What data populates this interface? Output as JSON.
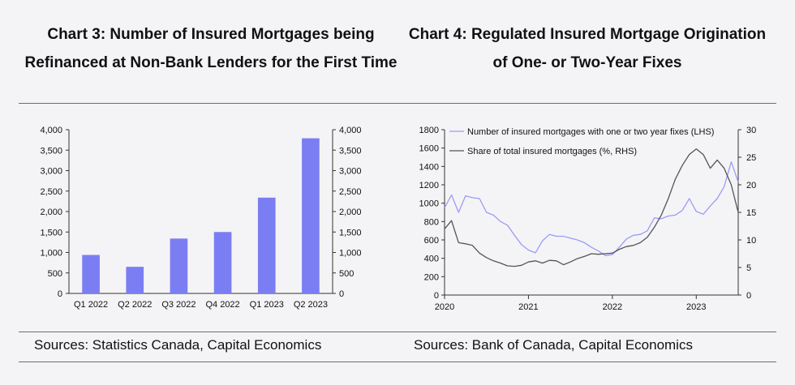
{
  "chart3": {
    "title": "Chart 3: Number of Insured Mortgages being Refinanced at Non-Bank Lenders for the First Time",
    "source": "Sources: Statistics Canada, Capital Economics"
  },
  "chart4": {
    "title": "Chart 4: Regulated Insured Mortgage Origination of One- or Two-Year Fixes",
    "source": "Sources: Bank of Canada, Capital Economics"
  },
  "colors": {
    "bar": "#7b7ef2",
    "line_count": "#9a9cf7",
    "line_share": "#555555",
    "axis": "#333333"
  },
  "chart_data": [
    {
      "type": "bar",
      "title": "Chart 3: Number of Insured Mortgages being Refinanced at Non-Bank Lenders for the First Time",
      "categories": [
        "Q1 2022",
        "Q2 2022",
        "Q3 2022",
        "Q4 2022",
        "Q1 2023",
        "Q2 2023"
      ],
      "values": [
        940,
        650,
        1340,
        1500,
        2340,
        3790
      ],
      "ylim": [
        0,
        4000
      ],
      "yticks": [
        "0",
        "500",
        "1,000",
        "1,500",
        "2,000",
        "2,500",
        "3,000",
        "3,500",
        "4,000"
      ],
      "y2ticks": [
        "0",
        "500",
        "1,000",
        "1,500",
        "2,000",
        "2,500",
        "3,000",
        "3,500",
        "4,000"
      ],
      "grid": false,
      "legend": "none"
    },
    {
      "type": "line",
      "title": "Chart 4: Regulated Insured Mortgage Origination of One- or Two-Year Fixes",
      "xlim": [
        2020.0,
        2023.5
      ],
      "xticks": [
        "2020",
        "2021",
        "2022",
        "2023"
      ],
      "ylim": [
        0,
        1800
      ],
      "yticks": [
        "0",
        "200",
        "400",
        "600",
        "800",
        "1000",
        "1200",
        "1400",
        "1600",
        "1800"
      ],
      "y2lim": [
        0,
        30
      ],
      "y2ticks": [
        "0",
        "5",
        "10",
        "15",
        "20",
        "25",
        "30"
      ],
      "legend": "top-left",
      "grid": false,
      "series": [
        {
          "name": "Number of insured mortgages with one or two year fixes (LHS)",
          "axis": "left",
          "x": [
            2020.0,
            2020.083,
            2020.167,
            2020.25,
            2020.333,
            2020.417,
            2020.5,
            2020.583,
            2020.667,
            2020.75,
            2020.833,
            2020.917,
            2021.0,
            2021.083,
            2021.167,
            2021.25,
            2021.333,
            2021.417,
            2021.5,
            2021.583,
            2021.667,
            2021.75,
            2021.833,
            2021.917,
            2022.0,
            2022.083,
            2022.167,
            2022.25,
            2022.333,
            2022.417,
            2022.5,
            2022.583,
            2022.667,
            2022.75,
            2022.833,
            2022.917,
            2023.0,
            2023.083,
            2023.167,
            2023.25,
            2023.333,
            2023.417,
            2023.5
          ],
          "y": [
            950,
            1090,
            900,
            1080,
            1060,
            1050,
            900,
            870,
            800,
            760,
            650,
            550,
            490,
            460,
            590,
            660,
            640,
            640,
            620,
            600,
            570,
            520,
            480,
            430,
            440,
            520,
            610,
            650,
            660,
            700,
            840,
            830,
            860,
            870,
            920,
            1050,
            910,
            880,
            970,
            1050,
            1180,
            1450,
            1230
          ]
        },
        {
          "name": "Share of total insured mortgages (%, RHS)",
          "axis": "right",
          "x": [
            2020.0,
            2020.083,
            2020.167,
            2020.25,
            2020.333,
            2020.417,
            2020.5,
            2020.583,
            2020.667,
            2020.75,
            2020.833,
            2020.917,
            2021.0,
            2021.083,
            2021.167,
            2021.25,
            2021.333,
            2021.417,
            2021.5,
            2021.583,
            2021.667,
            2021.75,
            2021.833,
            2021.917,
            2022.0,
            2022.083,
            2022.167,
            2022.25,
            2022.333,
            2022.417,
            2022.5,
            2022.583,
            2022.667,
            2022.75,
            2022.833,
            2022.917,
            2023.0,
            2023.083,
            2023.167,
            2023.25,
            2023.333,
            2023.417,
            2023.5
          ],
          "y": [
            12,
            13.5,
            9.5,
            9.3,
            9,
            7.6,
            6.8,
            6.2,
            5.8,
            5.3,
            5.2,
            5.4,
            6,
            6.2,
            5.8,
            6.3,
            6.2,
            5.5,
            6,
            6.6,
            7,
            7.5,
            7.4,
            7.5,
            7.6,
            8.3,
            8.8,
            9,
            9.5,
            10.5,
            12.3,
            14.5,
            17.5,
            21,
            23.5,
            25.5,
            26.5,
            25.5,
            23,
            24.5,
            23,
            20,
            15
          ]
        }
      ]
    }
  ]
}
